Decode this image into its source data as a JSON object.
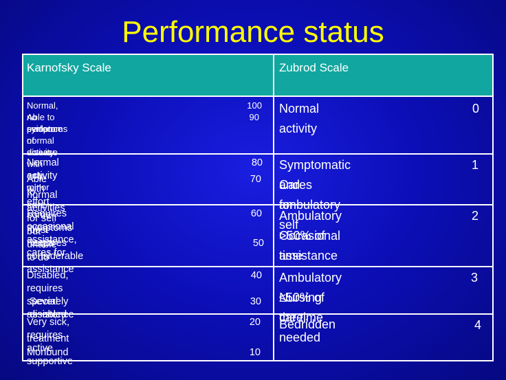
{
  "title": "Performance status",
  "headers": {
    "karnofsky": "Karnofsky Scale",
    "zubrod": "Zubrod Scale"
  },
  "rows": [
    {
      "k_lines": [
        "Normal, no evidence of disease",
        "Able to perform normal activity with only minor",
        "symptoms"
      ],
      "k_values": [
        "100",
        "90"
      ],
      "z_lines": [
        "Normal activity"
      ],
      "z_value": "0"
    },
    {
      "k_lines": [
        "Normal activity with effort, some symptoms",
        "Able to care for self but unable to do",
        "normal activities"
      ],
      "k_values": [
        "80",
        "70"
      ],
      "z_lines": [
        "Symptomatic and ambulatory",
        "Cares for self"
      ],
      "z_value": "1"
    },
    {
      "k_lines": [
        "Requires occasional assistance, cares for",
        "most needs",
        "Requires considerable assistance"
      ],
      "k_values": [
        "60",
        "50"
      ],
      "z_lines": [
        "Ambulatory >50% of time",
        "Occasional assistance"
      ],
      "z_value": "2"
    },
    {
      "k_lines": [
        "Disabled, requires special assistance",
        "Severely disabled"
      ],
      "k_values": [
        "40",
        "30"
      ],
      "z_lines": [
        "Ambulatory ≤50% of the time",
        "Nursing care needed"
      ],
      "z_value": "3"
    },
    {
      "k_lines": [
        "Very sick, requires active supportive",
        "treatment",
        "Moribund"
      ],
      "k_values": [
        "20",
        "10"
      ],
      "z_lines": [
        "Bedridden"
      ],
      "z_value": "4"
    }
  ],
  "colors": {
    "background": "#0c0fb8",
    "title": "#ffff00",
    "header_fill": "#11a7a0",
    "text": "#ffffff"
  }
}
